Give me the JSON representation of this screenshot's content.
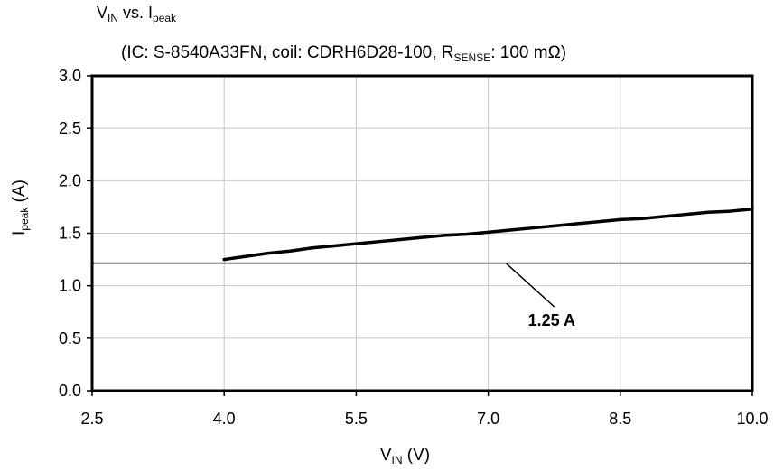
{
  "chart_data": {
    "type": "line",
    "title_main": "V",
    "title_main_sub": "IN",
    "title_mid": " vs. I",
    "title_mid_sub": "peak",
    "subtitle_pre": "(IC: S-8540A33FN, coil: CDRH6D28-100, R",
    "subtitle_sub": "SENSE",
    "subtitle_post": ": 100 mΩ)",
    "xlabel_main": "V",
    "xlabel_sub": "IN",
    "xlabel_unit": " (V)",
    "ylabel_main": "I",
    "ylabel_sub": "peak",
    "ylabel_unit": " (A)",
    "xlim": [
      2.5,
      10.0
    ],
    "ylim": [
      0.0,
      3.0
    ],
    "x_ticks": [
      "2.5",
      "4.0",
      "5.5",
      "7.0",
      "8.5",
      "10.0"
    ],
    "y_ticks": [
      "0.0",
      "0.5",
      "1.0",
      "1.5",
      "2.0",
      "2.5",
      "3.0"
    ],
    "grid": true,
    "series": [
      {
        "x": [
          4.0,
          4.25,
          4.5,
          4.75,
          5.0,
          5.25,
          5.5,
          5.75,
          6.0,
          6.25,
          6.5,
          6.75,
          7.0,
          7.25,
          7.5,
          7.75,
          8.0,
          8.25,
          8.5,
          8.75,
          9.0,
          9.25,
          9.5,
          9.75,
          10.0
        ],
        "y": [
          1.25,
          1.28,
          1.31,
          1.33,
          1.36,
          1.38,
          1.4,
          1.42,
          1.44,
          1.46,
          1.48,
          1.49,
          1.51,
          1.53,
          1.55,
          1.57,
          1.59,
          1.61,
          1.63,
          1.64,
          1.66,
          1.68,
          1.7,
          1.71,
          1.73
        ],
        "color": "#000000"
      }
    ],
    "reference_line": {
      "y": 1.25,
      "label": "1.25 A",
      "color": "#000000"
    }
  }
}
